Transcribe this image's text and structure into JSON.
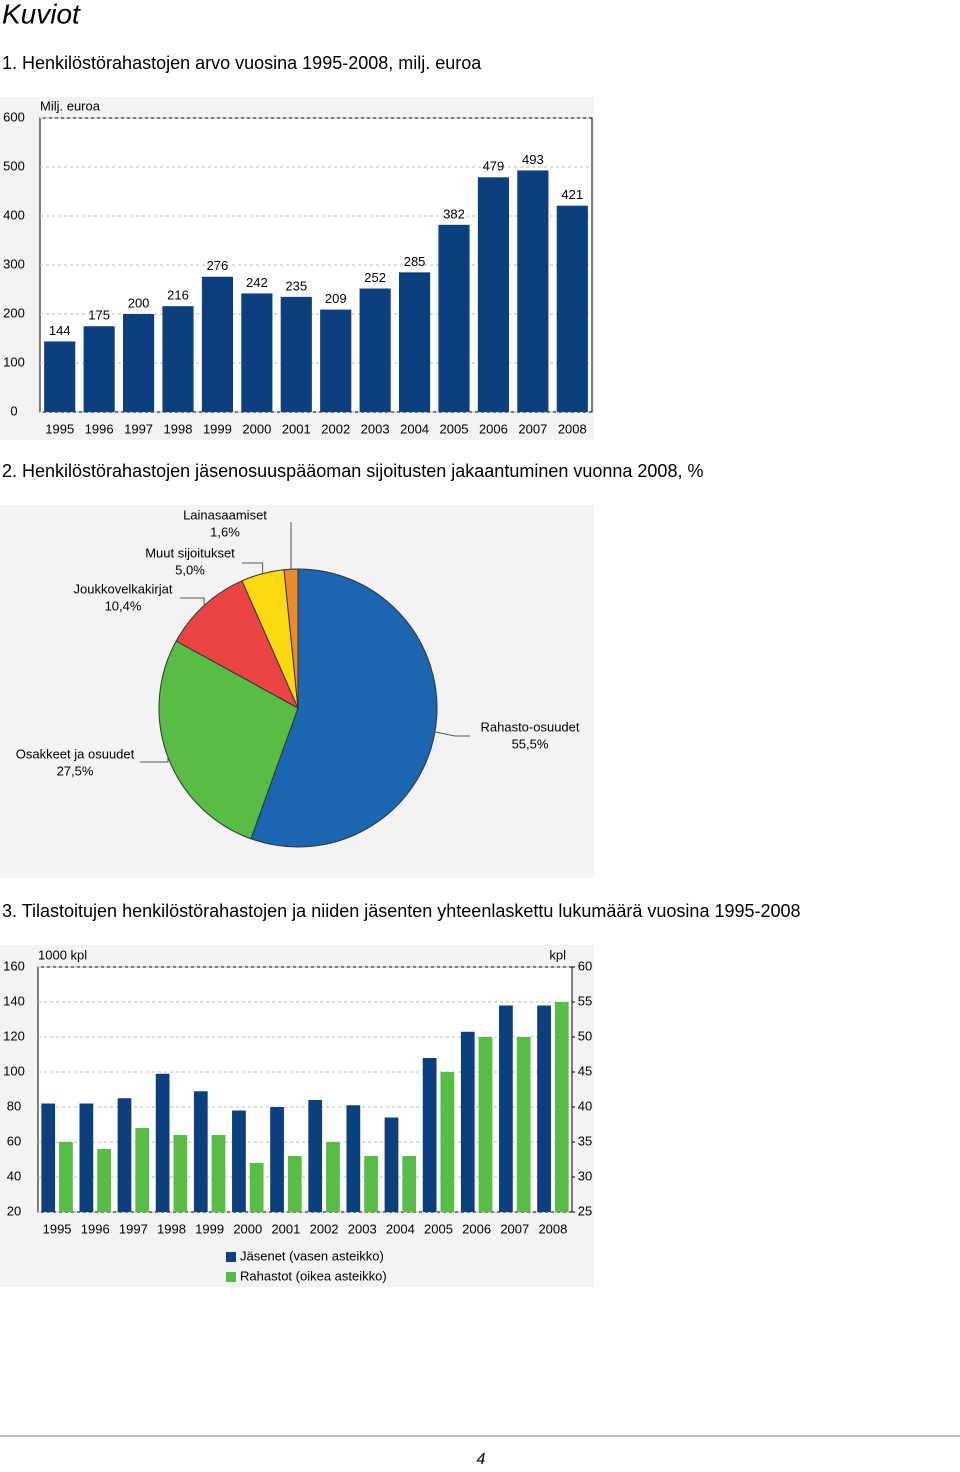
{
  "page": {
    "heading": "Kuviot",
    "page_number": "4"
  },
  "chart_data": [
    {
      "type": "bar",
      "title": "1. Henkilöstörahastojen arvo vuosina 1995-2008, milj. euroa",
      "y_label": "Milj. euroa",
      "categories": [
        "1995",
        "1996",
        "1997",
        "1998",
        "1999",
        "2000",
        "2001",
        "2002",
        "2003",
        "2004",
        "2005",
        "2006",
        "2007",
        "2008"
      ],
      "values": [
        144,
        175,
        200,
        216,
        276,
        242,
        235,
        209,
        252,
        285,
        382,
        479,
        493,
        421
      ],
      "color": "#0b3f7e",
      "data_labels": true,
      "ylim": [
        0,
        600
      ],
      "yticks": [
        0,
        100,
        200,
        300,
        400,
        500,
        600
      ]
    },
    {
      "type": "pie",
      "title": "2. Henkilöstörahastojen jäsenosuuspääoman sijoitusten jakaantuminen vuonna 2008, %",
      "categories": [
        "Rahasto-osuudet",
        "Osakkeet ja osuudet",
        "Joukkovelkakirjat",
        "Muut sijoitukset",
        "Lainasaamiset"
      ],
      "values": [
        55.5,
        27.5,
        10.4,
        5.0,
        1.6
      ],
      "value_labels": [
        "55,5%",
        "27,5%",
        "10,4%",
        "5,0%",
        "1,6%"
      ],
      "colors": [
        "#1b65b1",
        "#58bd45",
        "#ec4444",
        "#fcd90f",
        "#e88a2d"
      ]
    },
    {
      "type": "bar",
      "title": "3. Tilastoitujen henkilöstörahastojen ja niiden jäsenten yhteenlaskettu lukumäärä vuosina 1995-2008",
      "y_label": "1000 kpl",
      "y2_label": "kpl",
      "categories": [
        "1995",
        "1996",
        "1997",
        "1998",
        "1999",
        "2000",
        "2001",
        "2002",
        "2003",
        "2004",
        "2005",
        "2006",
        "2007",
        "2008"
      ],
      "series": [
        {
          "name": "Jäsenet (vasen asteikko)",
          "color": "#0b3f7e",
          "values": [
            82,
            82,
            85,
            99,
            89,
            78,
            80,
            84,
            81,
            74,
            108,
            123,
            138,
            138
          ]
        },
        {
          "name": "Rahastot (oikea asteikko)",
          "color": "#58bd45",
          "axis": "y2",
          "values": [
            35,
            34,
            37,
            36,
            36,
            32,
            33,
            35,
            33,
            33,
            45,
            50,
            50,
            55
          ]
        }
      ],
      "ylim": [
        20,
        160
      ],
      "yticks": [
        20,
        40,
        60,
        80,
        100,
        120,
        140,
        160
      ],
      "y2lim": [
        25,
        60
      ],
      "y2ticks": [
        25,
        30,
        35,
        40,
        45,
        50,
        55,
        60
      ],
      "legend": "bottom"
    }
  ]
}
